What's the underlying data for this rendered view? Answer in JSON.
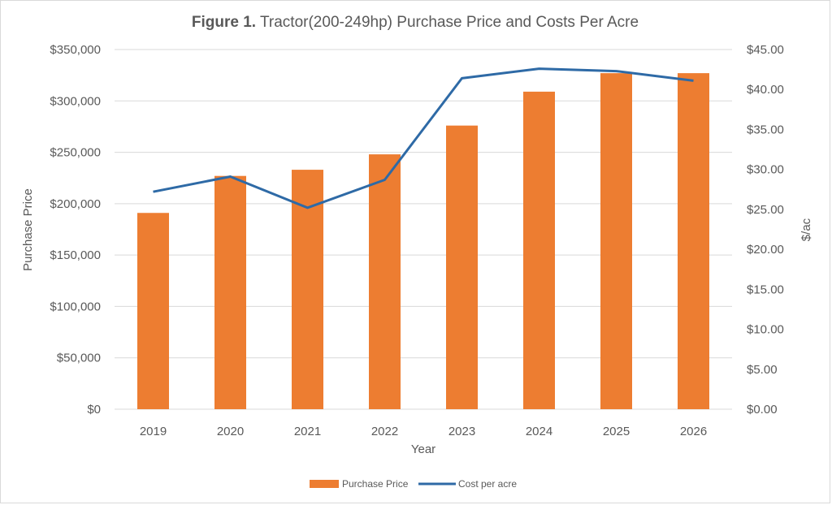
{
  "chart_data": {
    "type": "bar",
    "title_bold": "Figure 1.",
    "title_rest": " Tractor(200-249hp) Purchase Price and Costs Per Acre",
    "categories": [
      "2019",
      "2020",
      "2021",
      "2022",
      "2023",
      "2024",
      "2025",
      "2026"
    ],
    "series": [
      {
        "name": "Purchase Price",
        "type": "bar",
        "axis": "left",
        "color": "#ED7D31",
        "values": [
          191000,
          227000,
          233000,
          248000,
          276000,
          309000,
          327000,
          327000
        ]
      },
      {
        "name": "Cost per acre",
        "type": "line",
        "axis": "right",
        "color": "#2E6AA6",
        "values": [
          27.2,
          29.1,
          25.2,
          28.7,
          41.4,
          42.6,
          42.3,
          41.1
        ]
      }
    ],
    "xlabel": "Year",
    "ylabel": "Purchase Price",
    "y2label": "$/ac",
    "ylim": [
      0,
      350000
    ],
    "y2lim": [
      0,
      45
    ],
    "yticks": [
      "$0",
      "$50,000",
      "$100,000",
      "$150,000",
      "$200,000",
      "$250,000",
      "$300,000",
      "$350,000"
    ],
    "y2ticks": [
      "$0.00",
      "$5.00",
      "$10.00",
      "$15.00",
      "$20.00",
      "$25.00",
      "$30.00",
      "$35.00",
      "$40.00",
      "$45.00"
    ],
    "grid": true,
    "legend": "bottom-center",
    "colors": {
      "gridline": "#D9D9D9",
      "text": "#595959"
    }
  }
}
